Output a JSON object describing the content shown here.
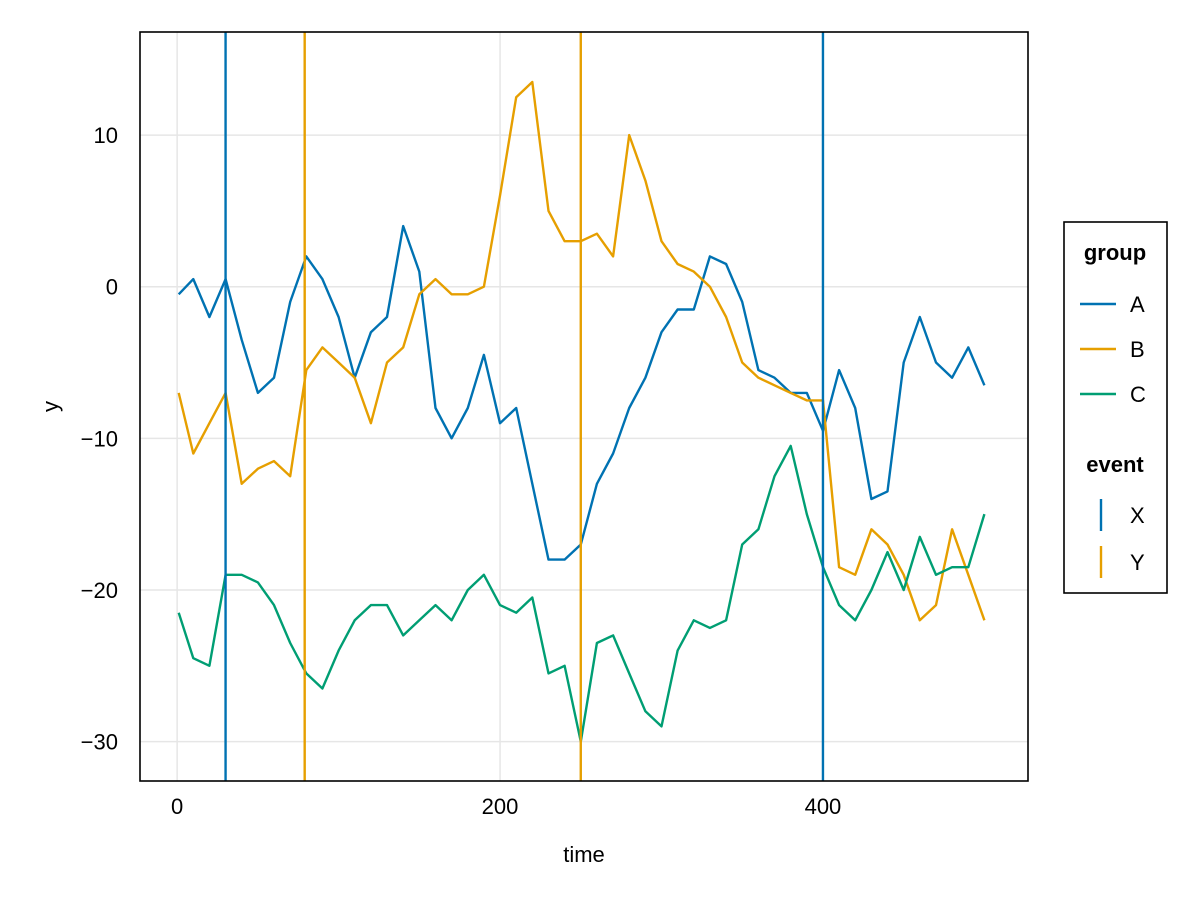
{
  "chart_data": {
    "type": "line",
    "title": "",
    "xlabel": "time",
    "ylabel": "y",
    "xlim": [
      -23,
      527
    ],
    "ylim": [
      -32.6,
      16.8
    ],
    "xticks": [
      0,
      200,
      400
    ],
    "yticks": [
      10,
      0,
      -10,
      -20,
      -30
    ],
    "grid": true,
    "legend_position": "right",
    "legend_groups": [
      {
        "title": "group",
        "entries": [
          "A",
          "B",
          "C"
        ]
      },
      {
        "title": "event",
        "entries": [
          "X",
          "Y"
        ]
      }
    ],
    "series": [
      {
        "name": "A",
        "color": "#0072b2",
        "x": [
          1,
          10,
          20,
          30,
          40,
          50,
          60,
          70,
          80,
          90,
          100,
          110,
          120,
          130,
          140,
          150,
          160,
          170,
          180,
          190,
          200,
          210,
          220,
          230,
          240,
          250,
          260,
          270,
          280,
          290,
          300,
          310,
          320,
          330,
          340,
          350,
          360,
          370,
          380,
          390,
          400,
          410,
          420,
          430,
          440,
          450,
          460,
          470,
          480,
          490,
          500
        ],
        "y": [
          -0.5,
          0.5,
          -2,
          0.5,
          -3.5,
          -7,
          -6,
          -1,
          2,
          0.5,
          -2,
          -6,
          -3,
          -2,
          4,
          1,
          -8,
          -10,
          -8,
          -4.5,
          -9,
          -8,
          -13,
          -18,
          -18,
          -17,
          -13,
          -11,
          -8,
          -6,
          -3,
          -1.5,
          -1.5,
          2,
          1.5,
          -1,
          -5.5,
          -6,
          -7,
          -7,
          -9.5,
          -5.5,
          -8,
          -14,
          -13.5,
          -5,
          -2,
          -5,
          -6,
          -4,
          -6.5
        ]
      },
      {
        "name": "B",
        "color": "#e69f00",
        "x": [
          1,
          10,
          20,
          30,
          40,
          50,
          60,
          70,
          80,
          90,
          100,
          110,
          120,
          130,
          140,
          150,
          160,
          170,
          180,
          190,
          200,
          210,
          220,
          230,
          240,
          250,
          260,
          270,
          280,
          290,
          300,
          310,
          320,
          330,
          340,
          350,
          360,
          370,
          380,
          390,
          400,
          410,
          420,
          430,
          440,
          450,
          460,
          470,
          480,
          490,
          500
        ],
        "y": [
          -7,
          -11,
          -9,
          -7,
          -13,
          -12,
          -11.5,
          -12.5,
          -5.5,
          -4,
          -5,
          -6,
          -9,
          -5,
          -4,
          -0.5,
          0.5,
          -0.5,
          -0.5,
          0,
          6,
          12.5,
          13.5,
          5,
          3,
          3,
          3.5,
          2,
          10,
          7,
          3,
          1.5,
          1,
          0,
          -2,
          -5,
          -6,
          -6.5,
          -7,
          -7.5,
          -7.5,
          -18.5,
          -19,
          -16,
          -17,
          -19,
          -22,
          -21,
          -16,
          -19,
          -22
        ]
      },
      {
        "name": "C",
        "color": "#009e73",
        "x": [
          1,
          10,
          20,
          30,
          40,
          50,
          60,
          70,
          80,
          90,
          100,
          110,
          120,
          130,
          140,
          150,
          160,
          170,
          180,
          190,
          200,
          210,
          220,
          230,
          240,
          250,
          260,
          270,
          280,
          290,
          300,
          310,
          320,
          330,
          340,
          350,
          360,
          370,
          380,
          390,
          400,
          410,
          420,
          430,
          440,
          450,
          460,
          470,
          480,
          490,
          500
        ],
        "y": [
          -21.5,
          -24.5,
          -25,
          -19,
          -19,
          -19.5,
          -21,
          -23.5,
          -25.5,
          -26.5,
          -24,
          -22,
          -21,
          -21,
          -23,
          -22,
          -21,
          -22,
          -20,
          -19,
          -21,
          -21.5,
          -20.5,
          -25.5,
          -25,
          -30,
          -23.5,
          -23,
          -25.5,
          -28,
          -29,
          -24,
          -22,
          -22.5,
          -22,
          -17,
          -16,
          -12.5,
          -10.5,
          -15,
          -18.5,
          -21,
          -22,
          -20,
          -17.5,
          -20,
          -16.5,
          -19,
          -18.5,
          -18.5,
          -15
        ]
      }
    ],
    "events": [
      {
        "name": "X",
        "color": "#0072b2",
        "x": [
          30,
          400
        ]
      },
      {
        "name": "Y",
        "color": "#e69f00",
        "x": [
          79,
          250
        ]
      }
    ]
  }
}
